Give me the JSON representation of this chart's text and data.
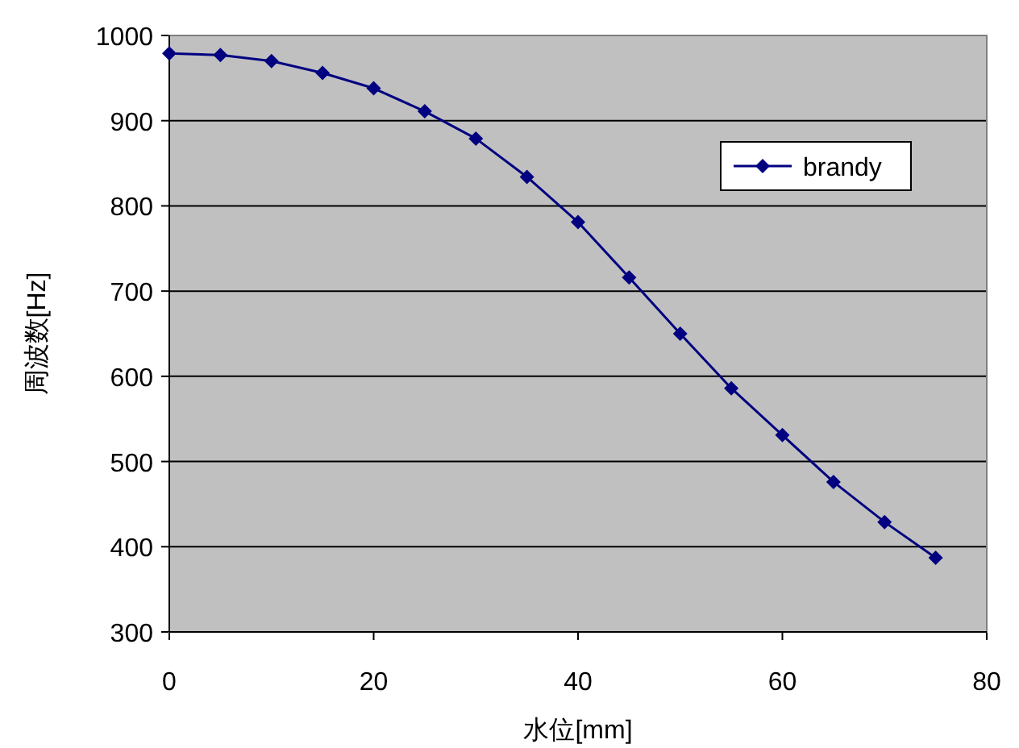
{
  "chart_data": {
    "type": "line",
    "xlabel": "水位[mm]",
    "ylabel": "周波数[Hz]",
    "x": [
      0,
      5,
      10,
      15,
      20,
      25,
      30,
      35,
      40,
      45,
      50,
      55,
      60,
      65,
      70,
      75
    ],
    "series": [
      {
        "name": "brandy",
        "color": "#000080",
        "values": [
          979,
          977,
          970,
          956,
          938,
          911,
          879,
          834,
          781,
          716,
          650,
          586,
          531,
          476,
          429,
          387
        ]
      }
    ],
    "xlim": [
      0,
      80
    ],
    "xticks": [
      0,
      20,
      40,
      60,
      80
    ],
    "ylim": [
      300,
      1000
    ],
    "yticks": [
      300,
      400,
      500,
      600,
      700,
      800,
      900,
      1000
    ],
    "grid": "y",
    "legend": "top right",
    "marker": "diamond",
    "line_style": "solid"
  }
}
